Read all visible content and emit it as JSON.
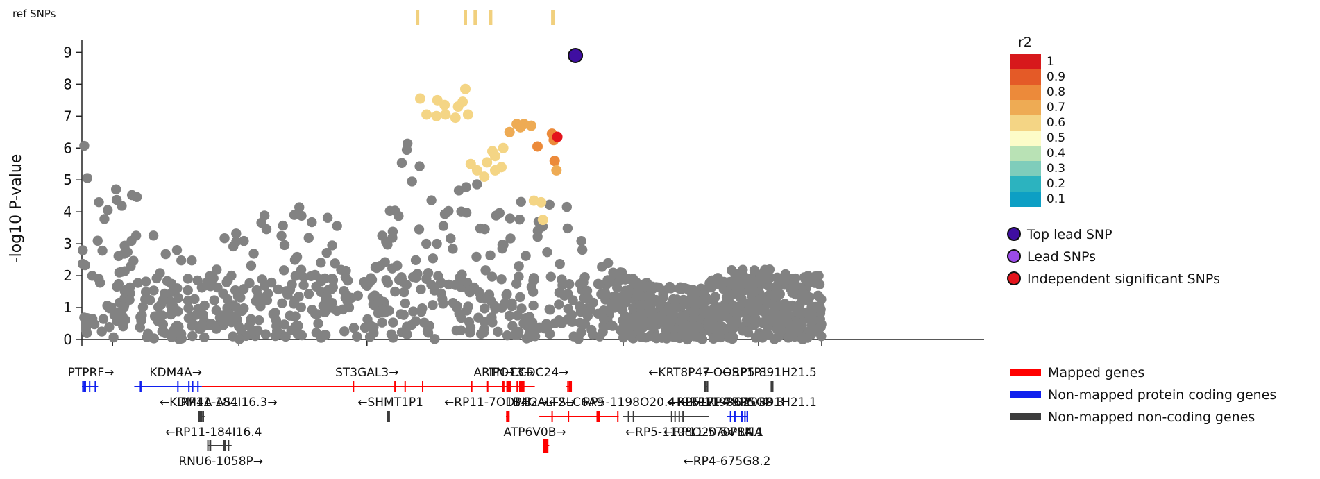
{
  "chart_data": {
    "type": "scatter",
    "title": "",
    "xlabel": "",
    "ylabel": "-log10 P-value",
    "ylim": [
      0,
      9.4
    ],
    "yticks": [
      0,
      1,
      2,
      3,
      4,
      5,
      6,
      7,
      8,
      9
    ],
    "ref_snps_label": "ref SNPs",
    "ref_snps_fraction": [
      0.372,
      0.425,
      0.436,
      0.453,
      0.522
    ],
    "legend_r2": {
      "title": "r2",
      "placement": "right",
      "bins": [
        {
          "label": "1",
          "color": "#d7191c"
        },
        {
          "label": "0.9",
          "color": "#e45a27"
        },
        {
          "label": "0.8",
          "color": "#ec8a3a"
        },
        {
          "label": "0.7",
          "color": "#eeab54"
        },
        {
          "label": "0.6",
          "color": "#f4d585"
        },
        {
          "label": "0.5",
          "color": "#fdfcc8"
        },
        {
          "label": "0.4",
          "color": "#b9e2b5"
        },
        {
          "label": "0.3",
          "color": "#7fcdbb"
        },
        {
          "label": "0.2",
          "color": "#2cb3bf"
        },
        {
          "label": "0.1",
          "color": "#0d9fc4"
        }
      ]
    },
    "legend_snps": [
      {
        "label": "Top lead SNP",
        "color": "#3f0ea1"
      },
      {
        "label": "Lead SNPs",
        "color": "#9a4be8"
      },
      {
        "label": "Independent significant SNPs",
        "color": "#e3141c"
      }
    ],
    "legend_genes": [
      {
        "label": "Mapped genes",
        "color": "#ff0000"
      },
      {
        "label": "Non-mapped protein coding genes",
        "color": "#1020ee"
      },
      {
        "label": "Non-mapped non-coding genes",
        "color": "#3c3c3c"
      }
    ],
    "top_lead_snp": {
      "x": 0.547,
      "y": 8.9
    },
    "independent_snps": [
      {
        "x": 0.527,
        "y": 6.35
      }
    ],
    "colored_snps": [
      {
        "x": 0.375,
        "y": 7.55,
        "r2": 0.6
      },
      {
        "x": 0.394,
        "y": 7.5,
        "r2": 0.6
      },
      {
        "x": 0.402,
        "y": 7.35,
        "r2": 0.6
      },
      {
        "x": 0.382,
        "y": 7.05,
        "r2": 0.6
      },
      {
        "x": 0.393,
        "y": 7.0,
        "r2": 0.6
      },
      {
        "x": 0.403,
        "y": 7.05,
        "r2": 0.6
      },
      {
        "x": 0.417,
        "y": 7.3,
        "r2": 0.6
      },
      {
        "x": 0.422,
        "y": 7.45,
        "r2": 0.6
      },
      {
        "x": 0.425,
        "y": 7.85,
        "r2": 0.6
      },
      {
        "x": 0.414,
        "y": 6.95,
        "r2": 0.6
      },
      {
        "x": 0.428,
        "y": 7.05,
        "r2": 0.6
      },
      {
        "x": 0.431,
        "y": 5.5,
        "r2": 0.6
      },
      {
        "x": 0.438,
        "y": 5.3,
        "r2": 0.6
      },
      {
        "x": 0.446,
        "y": 5.1,
        "r2": 0.6
      },
      {
        "x": 0.449,
        "y": 5.55,
        "r2": 0.6
      },
      {
        "x": 0.455,
        "y": 5.9,
        "r2": 0.6
      },
      {
        "x": 0.458,
        "y": 5.3,
        "r2": 0.6
      },
      {
        "x": 0.465,
        "y": 5.4,
        "r2": 0.6
      },
      {
        "x": 0.467,
        "y": 6.0,
        "r2": 0.6
      },
      {
        "x": 0.458,
        "y": 5.75,
        "r2": 0.6
      },
      {
        "x": 0.474,
        "y": 6.5,
        "r2": 0.7
      },
      {
        "x": 0.482,
        "y": 6.75,
        "r2": 0.7
      },
      {
        "x": 0.486,
        "y": 6.65,
        "r2": 0.7
      },
      {
        "x": 0.49,
        "y": 6.75,
        "r2": 0.7
      },
      {
        "x": 0.498,
        "y": 6.7,
        "r2": 0.7
      },
      {
        "x": 0.501,
        "y": 4.35,
        "r2": 0.6
      },
      {
        "x": 0.509,
        "y": 4.3,
        "r2": 0.6
      },
      {
        "x": 0.511,
        "y": 3.75,
        "r2": 0.6
      },
      {
        "x": 0.505,
        "y": 6.05,
        "r2": 0.8
      },
      {
        "x": 0.521,
        "y": 6.45,
        "r2": 0.8
      },
      {
        "x": 0.523,
        "y": 6.25,
        "r2": 0.8
      },
      {
        "x": 0.524,
        "y": 5.6,
        "r2": 0.8
      },
      {
        "x": 0.526,
        "y": 5.3,
        "r2": 0.7
      }
    ],
    "genes_row1": [
      {
        "label": "PTPRF→",
        "x": 0.01,
        "color": "#1020ee"
      },
      {
        "label": "KDM4A→",
        "x": 0.104,
        "color": "#1020ee"
      },
      {
        "label": "ST3GAL3→",
        "x": 0.316,
        "color": "#ff0000"
      },
      {
        "label": "ARTN→",
        "x": 0.457,
        "color": "#ff0000"
      },
      {
        "label": "IPO13→",
        "x": 0.476,
        "color": "#ff0000"
      },
      {
        "label": "CCDC24→",
        "x": 0.507,
        "color": "#ff0000"
      },
      {
        "label": "←KRT8P47",
        "x": 0.662,
        "color": "#3c3c3c"
      },
      {
        "label": "←OOSP1P1",
        "x": 0.725,
        "color": "#3c3c3c"
      },
      {
        "label": "←RP5-891H21.5",
        "x": 0.762,
        "color": "#3c3c3c"
      }
    ],
    "genes_row2": [
      {
        "label": "←KDM4A-AS1",
        "x": 0.13,
        "color": "#3c3c3c"
      },
      {
        "label": "RP11-184I16.3→",
        "x": 0.163,
        "color": "#3c3c3c"
      },
      {
        "label": "←SHMT1P1",
        "x": 0.342,
        "color": "#3c3c3c"
      },
      {
        "label": "←RP11-7O11.3",
        "x": 0.45,
        "color": "#ff0000"
      },
      {
        "label": "DPH2→",
        "x": 0.493,
        "color": "#ff0000"
      },
      {
        "label": "B4GALT2→",
        "x": 0.512,
        "color": "#ff0000"
      },
      {
        "label": "←SLC6A9",
        "x": 0.548,
        "color": "#ff0000"
      },
      {
        "label": "RP5-1198O20.4→",
        "x": 0.612,
        "color": "#3c3c3c"
      },
      {
        "label": "←KLF17",
        "x": 0.675,
        "color": "#1020ee"
      },
      {
        "label": "←RP11-79P6.3",
        "x": 0.71,
        "color": "#3c3c3c"
      },
      {
        "label": "←RP5-1198O20.4",
        "x": 0.705,
        "color": "#3c3c3c"
      },
      {
        "label": "←RP4-675G8.3",
        "x": 0.73,
        "color": "#3c3c3c"
      },
      {
        "label": "←RP5-891H21.1",
        "x": 0.762,
        "color": "#3c3c3c"
      }
    ],
    "genes_row3": [
      {
        "label": "←RP11-184I16.4",
        "x": 0.146,
        "color": "#3c3c3c"
      },
      {
        "label": "ATP6V0B→",
        "x": 0.502,
        "color": "#ff0000"
      },
      {
        "label": "←RP5-1198O20.5",
        "x": 0.659,
        "color": "#3c3c3c"
      },
      {
        "label": "←RP11-570P14.1",
        "x": 0.7,
        "color": "#3c3c3c"
      },
      {
        "label": "←7SK",
        "x": 0.725,
        "color": "#3c3c3c"
      },
      {
        "label": "←RNA",
        "x": 0.735,
        "color": "#3c3c3c"
      }
    ],
    "genes_row4": [
      {
        "label": "RNU6-1058P→",
        "x": 0.154,
        "color": "#3c3c3c"
      },
      {
        "label": "←RP4-675G8.2",
        "x": 0.715,
        "color": "#3c3c3c"
      }
    ]
  }
}
